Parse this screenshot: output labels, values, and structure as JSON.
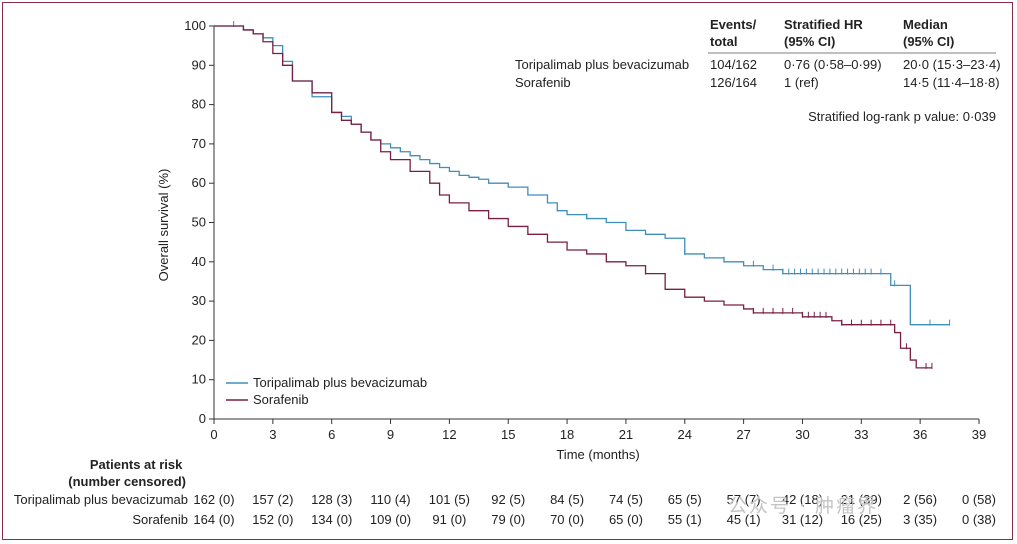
{
  "chart_data": {
    "type": "line",
    "subtype": "kaplan-meier",
    "title": "",
    "ylabel": "Overall survival (%)",
    "xlabel": "Time (months)",
    "xlim": [
      0,
      39
    ],
    "ylim": [
      0,
      100
    ],
    "xticks": [
      0,
      3,
      6,
      9,
      12,
      15,
      18,
      21,
      24,
      27,
      30,
      33,
      36,
      39
    ],
    "yticks": [
      0,
      10,
      20,
      30,
      40,
      50,
      60,
      70,
      80,
      90,
      100
    ],
    "series": [
      {
        "name": "Toripalimab plus bevacizumab",
        "color": "#3f8fb8",
        "points": [
          [
            0,
            100
          ],
          [
            1,
            100
          ],
          [
            1.5,
            99
          ],
          [
            2,
            98
          ],
          [
            2.5,
            97
          ],
          [
            3,
            95
          ],
          [
            3.5,
            91
          ],
          [
            4,
            86
          ],
          [
            5,
            82
          ],
          [
            6,
            78
          ],
          [
            6.5,
            77
          ],
          [
            7,
            75
          ],
          [
            7.5,
            73
          ],
          [
            8,
            71
          ],
          [
            8.5,
            70
          ],
          [
            9,
            69
          ],
          [
            9.5,
            68
          ],
          [
            10,
            67
          ],
          [
            10.5,
            66
          ],
          [
            11,
            65
          ],
          [
            11.5,
            64
          ],
          [
            12,
            63
          ],
          [
            12.5,
            62
          ],
          [
            13,
            61.5
          ],
          [
            13.5,
            61
          ],
          [
            14,
            60
          ],
          [
            15,
            59
          ],
          [
            16,
            57
          ],
          [
            17,
            55
          ],
          [
            17.5,
            53
          ],
          [
            18,
            52
          ],
          [
            19,
            51
          ],
          [
            20,
            50
          ],
          [
            21,
            48
          ],
          [
            22,
            47
          ],
          [
            23,
            46
          ],
          [
            24,
            42
          ],
          [
            25,
            41
          ],
          [
            26,
            40
          ],
          [
            27,
            39
          ],
          [
            28,
            38
          ],
          [
            29,
            37
          ],
          [
            30,
            37
          ],
          [
            31,
            37
          ],
          [
            32,
            37
          ],
          [
            33,
            37
          ],
          [
            34,
            37
          ],
          [
            34.5,
            34
          ],
          [
            35,
            34
          ],
          [
            35.5,
            24
          ],
          [
            36,
            24
          ],
          [
            37.5,
            24
          ]
        ],
        "censor_times": [
          1,
          2.5,
          19,
          24,
          26,
          27.5,
          28.5,
          29,
          29.3,
          29.6,
          29.9,
          30.2,
          30.5,
          30.8,
          31.1,
          31.4,
          31.7,
          32,
          32.3,
          32.6,
          32.9,
          33.2,
          33.5,
          34,
          34.7,
          36.5,
          37.5
        ]
      },
      {
        "name": "Sorafenib",
        "color": "#7a1f44",
        "points": [
          [
            0,
            100
          ],
          [
            1,
            100
          ],
          [
            1.5,
            99
          ],
          [
            2,
            98
          ],
          [
            2.5,
            96
          ],
          [
            3,
            93
          ],
          [
            3.5,
            90
          ],
          [
            4,
            86
          ],
          [
            5,
            83
          ],
          [
            6,
            78
          ],
          [
            6.5,
            76
          ],
          [
            7,
            75
          ],
          [
            7.5,
            73
          ],
          [
            8,
            71
          ],
          [
            8.5,
            68
          ],
          [
            9,
            66
          ],
          [
            10,
            63
          ],
          [
            11,
            60
          ],
          [
            11.5,
            57
          ],
          [
            12,
            55
          ],
          [
            13,
            53
          ],
          [
            14,
            51
          ],
          [
            15,
            49
          ],
          [
            16,
            47
          ],
          [
            17,
            45
          ],
          [
            18,
            43
          ],
          [
            19,
            42
          ],
          [
            20,
            40
          ],
          [
            21,
            39
          ],
          [
            22,
            37
          ],
          [
            23,
            33
          ],
          [
            24,
            31
          ],
          [
            25,
            30
          ],
          [
            26,
            29
          ],
          [
            27,
            28
          ],
          [
            27.5,
            27
          ],
          [
            28,
            27
          ],
          [
            29,
            27
          ],
          [
            30,
            26
          ],
          [
            31,
            26
          ],
          [
            31.5,
            25
          ],
          [
            32,
            24
          ],
          [
            33,
            24
          ],
          [
            34,
            24
          ],
          [
            34.5,
            24
          ],
          [
            34.7,
            22
          ],
          [
            35,
            18
          ],
          [
            35.5,
            15
          ],
          [
            35.8,
            13
          ],
          [
            36,
            13
          ],
          [
            36.6,
            13
          ]
        ],
        "censor_times": [
          22,
          27.5,
          28,
          28.5,
          29,
          29.5,
          30,
          30.3,
          30.6,
          30.9,
          31.2,
          32,
          32.5,
          33,
          33.5,
          34,
          34.5,
          35.3,
          36.3,
          36.6
        ]
      }
    ],
    "legend": [
      "Toripalimab plus bevacizumab",
      "Sorafenib"
    ],
    "legend_position": "bottom-left"
  },
  "table": {
    "headers": [
      "Events/\ntotal",
      "Stratified HR\n(95% CI)",
      "Median\n(95% CI)"
    ],
    "rows": [
      {
        "arm": "Toripalimab plus bevacizumab",
        "events": "104/162",
        "hr": "0·76 (0·58–0·99)",
        "median": "20·0 (15·3–23·4)"
      },
      {
        "arm": "Sorafenib",
        "events": "126/164",
        "hr": "1 (ref)",
        "median": "14·5 (11·4–18·8)"
      }
    ],
    "pvalue": "Stratified log-rank p value: 0·039"
  },
  "risk": {
    "header": "Patients at risk\n(number censored)",
    "rows": [
      {
        "label": "Toripalimab plus bevacizumab",
        "values": [
          "162 (0)",
          "157 (2)",
          "128 (3)",
          "110 (4)",
          "101 (5)",
          "92 (5)",
          "84 (5)",
          "74 (5)",
          "65 (5)",
          "57 (7)",
          "42 (18)",
          "21 (39)",
          "2 (56)",
          "0 (58)"
        ]
      },
      {
        "label": "Sorafenib",
        "values": [
          "164 (0)",
          "152 (0)",
          "134 (0)",
          "109 (0)",
          "91 (0)",
          "79 (0)",
          "70 (0)",
          "65 (0)",
          "55 (1)",
          "45 (1)",
          "31 (12)",
          "16 (25)",
          "3 (35)",
          "0 (38)"
        ]
      }
    ]
  },
  "watermark": "公众号 · 肿瘤界"
}
